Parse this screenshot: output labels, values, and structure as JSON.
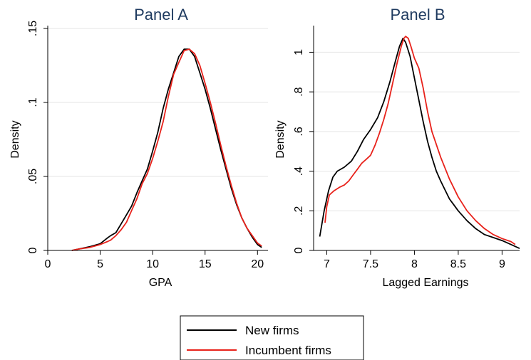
{
  "chart_data": [
    {
      "type": "line",
      "title": "Panel A",
      "xlabel": "GPA",
      "ylabel": "Density",
      "xlim": [
        0,
        21
      ],
      "ylim": [
        0,
        0.15
      ],
      "xticks": [
        0,
        5,
        10,
        15,
        20
      ],
      "xtick_labels": [
        "0",
        "5",
        "10",
        "15",
        "20"
      ],
      "yticks": [
        0,
        0.05,
        0.1,
        0.15
      ],
      "ytick_labels": [
        "0",
        ".05",
        ".1",
        ".15"
      ],
      "grid": true,
      "series": [
        {
          "name": "New firms",
          "color": "#000000",
          "x": [
            2.3,
            3,
            4,
            5,
            5.7,
            6,
            6.5,
            7,
            7.5,
            8,
            8.5,
            9,
            9.5,
            10,
            10.5,
            11,
            11.5,
            12,
            12.5,
            13,
            13.5,
            14,
            14.5,
            15,
            15.5,
            16,
            16.5,
            17,
            17.5,
            18,
            18.5,
            19,
            19.5,
            20,
            20.4
          ],
          "y": [
            0.0,
            0.001,
            0.0025,
            0.0045,
            0.0085,
            0.01,
            0.012,
            0.018,
            0.024,
            0.03,
            0.039,
            0.047,
            0.055,
            0.067,
            0.08,
            0.096,
            0.109,
            0.12,
            0.131,
            0.136,
            0.136,
            0.131,
            0.12,
            0.109,
            0.096,
            0.082,
            0.068,
            0.055,
            0.042,
            0.031,
            0.022,
            0.015,
            0.009,
            0.004,
            0.002
          ]
        },
        {
          "name": "Incumbent firms",
          "color": "#e8221b",
          "x": [
            2.3,
            3,
            4,
            5,
            5.7,
            6,
            6.5,
            7,
            7.5,
            8,
            8.5,
            9,
            9.5,
            10,
            10.5,
            11,
            11.5,
            12,
            12.5,
            13,
            13.5,
            14,
            14.5,
            15,
            15.5,
            16,
            16.5,
            17,
            17.5,
            18,
            18.5,
            19,
            19.5,
            20,
            20.4
          ],
          "y": [
            0.0,
            0.001,
            0.002,
            0.004,
            0.006,
            0.007,
            0.01,
            0.014,
            0.019,
            0.027,
            0.035,
            0.045,
            0.052,
            0.062,
            0.074,
            0.087,
            0.104,
            0.119,
            0.127,
            0.135,
            0.136,
            0.133,
            0.125,
            0.113,
            0.1,
            0.086,
            0.071,
            0.057,
            0.044,
            0.032,
            0.022,
            0.015,
            0.01,
            0.005,
            0.003
          ]
        }
      ]
    },
    {
      "type": "line",
      "title": "Panel B",
      "xlabel": "Lagged Earnings",
      "ylabel": "Density",
      "xlim": [
        6.85,
        9.2
      ],
      "ylim": [
        0,
        1.12
      ],
      "xticks": [
        7,
        7.5,
        8,
        8.5,
        9
      ],
      "xtick_labels": [
        "7",
        "7.5",
        "8",
        "8.5",
        "9"
      ],
      "yticks": [
        0,
        0.2,
        0.4,
        0.6,
        0.8,
        1
      ],
      "ytick_labels": [
        "0",
        ".2",
        ".4",
        ".6",
        ".8",
        "1"
      ],
      "grid": true,
      "series": [
        {
          "name": "New firms",
          "color": "#000000",
          "x": [
            6.92,
            6.97,
            7.02,
            7.07,
            7.12,
            7.2,
            7.28,
            7.35,
            7.42,
            7.5,
            7.58,
            7.65,
            7.72,
            7.78,
            7.83,
            7.87,
            7.9,
            7.95,
            8.0,
            8.05,
            8.1,
            8.15,
            8.2,
            8.25,
            8.3,
            8.4,
            8.5,
            8.6,
            8.7,
            8.8,
            8.9,
            9.0,
            9.1,
            9.2
          ],
          "y": [
            0.07,
            0.2,
            0.3,
            0.37,
            0.4,
            0.42,
            0.45,
            0.5,
            0.56,
            0.61,
            0.67,
            0.75,
            0.85,
            0.95,
            1.03,
            1.07,
            1.05,
            0.98,
            0.87,
            0.76,
            0.65,
            0.55,
            0.47,
            0.4,
            0.35,
            0.26,
            0.2,
            0.15,
            0.11,
            0.08,
            0.065,
            0.05,
            0.03,
            0.01
          ]
        },
        {
          "name": "Incumbent firms",
          "color": "#e8221b",
          "x": [
            6.98,
            7.0,
            7.03,
            7.08,
            7.15,
            7.2,
            7.25,
            7.3,
            7.35,
            7.4,
            7.45,
            7.5,
            7.55,
            7.6,
            7.65,
            7.7,
            7.75,
            7.8,
            7.85,
            7.88,
            7.9,
            7.93,
            7.96,
            8.0,
            8.05,
            8.1,
            8.15,
            8.2,
            8.3,
            8.4,
            8.5,
            8.6,
            8.7,
            8.8,
            8.9,
            9.0,
            9.1,
            9.15
          ],
          "y": [
            0.14,
            0.22,
            0.28,
            0.3,
            0.32,
            0.33,
            0.35,
            0.38,
            0.41,
            0.44,
            0.46,
            0.48,
            0.53,
            0.59,
            0.66,
            0.74,
            0.84,
            0.94,
            1.03,
            1.07,
            1.08,
            1.07,
            1.03,
            0.97,
            0.92,
            0.82,
            0.7,
            0.6,
            0.47,
            0.36,
            0.27,
            0.2,
            0.15,
            0.11,
            0.08,
            0.06,
            0.045,
            0.03
          ]
        }
      ]
    }
  ],
  "legend": {
    "placement": "bottom-center",
    "items": [
      {
        "label": "New firms",
        "color": "#000000"
      },
      {
        "label": "Incumbent firms",
        "color": "#e8221b"
      }
    ]
  }
}
